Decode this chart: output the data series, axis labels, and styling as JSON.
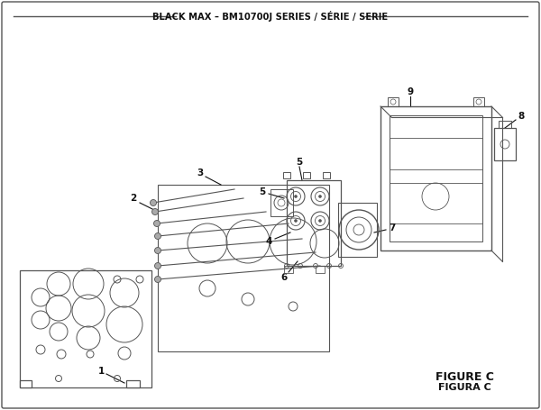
{
  "title": "BLACK MAX – BM10700J SERIES / SÉRIE / SERIE",
  "figure_label": "FIGURE C",
  "figura_label": "FIGURA C",
  "bg_color": "#ffffff",
  "line_color": "#555555",
  "text_color": "#111111"
}
